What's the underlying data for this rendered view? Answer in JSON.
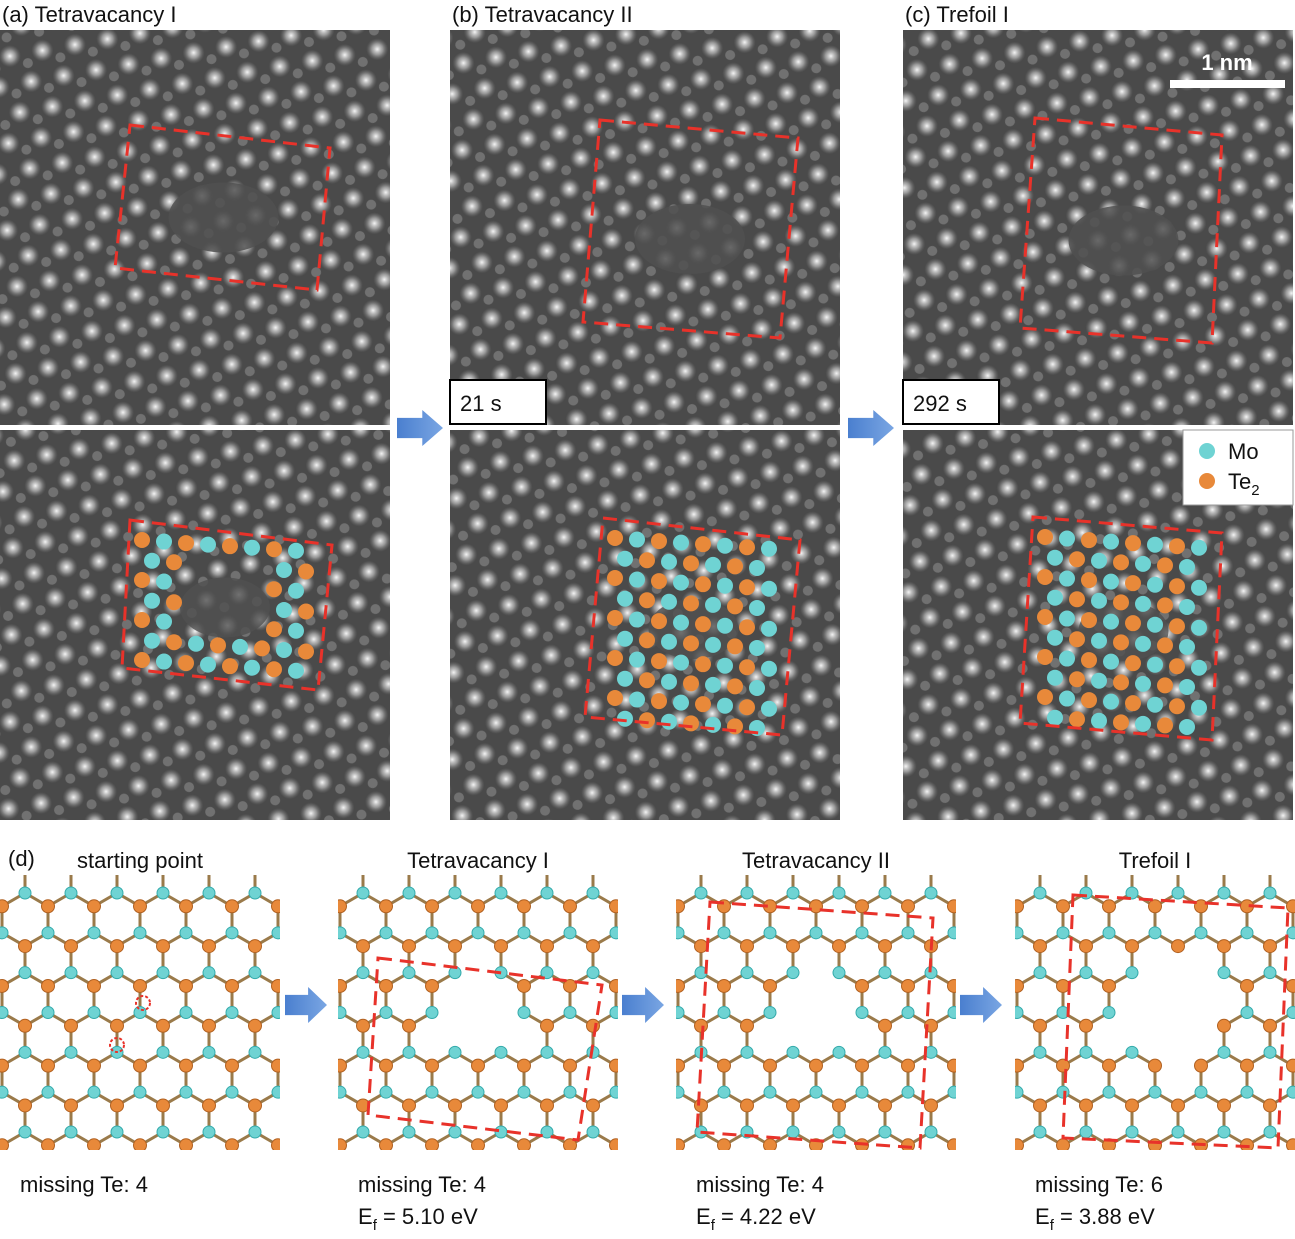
{
  "panels": [
    {
      "label": "(a) Tetravacancy I"
    },
    {
      "label": "(b) Tetravacancy II",
      "time": "21 s"
    },
    {
      "label": "(c) Trefoil I",
      "time": "292 s",
      "scale_bar": "1 nm"
    }
  ],
  "legend": [
    {
      "label": "Mo"
    },
    {
      "label": "Te",
      "subscript": "2"
    }
  ],
  "models": {
    "label": "(d)",
    "items": [
      {
        "title": "starting point",
        "missing": "missing Te: 4"
      },
      {
        "title": "Tetravacancy I",
        "missing": "missing Te: 4",
        "energy": {
          "symbol": "E",
          "subscript": "f",
          "text": " = 5.10 eV"
        }
      },
      {
        "title": "Tetravacancy II",
        "missing": "missing Te: 4",
        "energy": {
          "symbol": "E",
          "subscript": "f",
          "text": " = 4.22 eV"
        }
      },
      {
        "title": "Trefoil I",
        "missing": "missing Te: 6",
        "energy": {
          "symbol": "E",
          "subscript": "f",
          "text": " = 3.88 eV"
        }
      }
    ]
  }
}
